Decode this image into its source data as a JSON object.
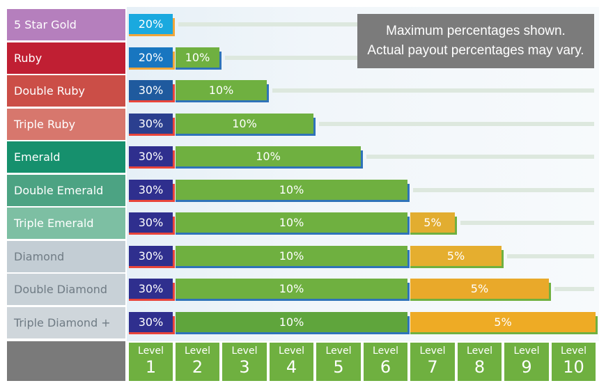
{
  "note": {
    "line1": "Maximum percentages shown.",
    "line2": "Actual payout percentages may vary."
  },
  "chart_data": {
    "type": "bar",
    "levels": [
      {
        "word": "Level",
        "num": "1"
      },
      {
        "word": "Level",
        "num": "2"
      },
      {
        "word": "Level",
        "num": "3"
      },
      {
        "word": "Level",
        "num": "4"
      },
      {
        "word": "Level",
        "num": "5"
      },
      {
        "word": "Level",
        "num": "6"
      },
      {
        "word": "Level",
        "num": "7"
      },
      {
        "word": "Level",
        "num": "8"
      },
      {
        "word": "Level",
        "num": "9"
      },
      {
        "word": "Level",
        "num": "10"
      }
    ],
    "ranks": [
      {
        "name": "5 Star Gold",
        "color": "#b57fbd",
        "segments": [
          {
            "label": "20%",
            "value": 20,
            "from_level": 1,
            "to_level": 1,
            "color": "#1aa9df",
            "accent": "#f0a63a"
          }
        ]
      },
      {
        "name": "Ruby",
        "color": "#c01f33",
        "segments": [
          {
            "label": "20%",
            "value": 20,
            "from_level": 1,
            "to_level": 1,
            "color": "#1876c0",
            "accent": "#f0a63a"
          },
          {
            "label": "10%",
            "value": 10,
            "from_level": 2,
            "to_level": 2,
            "color": "#6fb040",
            "accent": "#2f73b9"
          }
        ]
      },
      {
        "name": "Double Ruby",
        "color": "#cb4e47",
        "segments": [
          {
            "label": "30%",
            "value": 30,
            "from_level": 1,
            "to_level": 1,
            "color": "#1f5a9e",
            "accent": "#e8453b"
          },
          {
            "label": "10%",
            "value": 10,
            "from_level": 2,
            "to_level": 3,
            "color": "#6fb040",
            "accent": "#2f73b9"
          }
        ]
      },
      {
        "name": "Triple Ruby",
        "color": "#d7776d",
        "segments": [
          {
            "label": "30%",
            "value": 30,
            "from_level": 1,
            "to_level": 1,
            "color": "#2b3f8f",
            "accent": "#e8453b"
          },
          {
            "label": "10%",
            "value": 10,
            "from_level": 2,
            "to_level": 4,
            "color": "#6fb040",
            "accent": "#2f73b9"
          }
        ]
      },
      {
        "name": "Emerald",
        "color": "#16906d",
        "segments": [
          {
            "label": "30%",
            "value": 30,
            "from_level": 1,
            "to_level": 1,
            "color": "#2f2f8e",
            "accent": "#e8453b"
          },
          {
            "label": "10%",
            "value": 10,
            "from_level": 2,
            "to_level": 5,
            "color": "#6fb040",
            "accent": "#2f73b9"
          }
        ]
      },
      {
        "name": "Double Emerald",
        "color": "#4ca383",
        "segments": [
          {
            "label": "30%",
            "value": 30,
            "from_level": 1,
            "to_level": 1,
            "color": "#2f2f8e",
            "accent": "#e8453b"
          },
          {
            "label": "10%",
            "value": 10,
            "from_level": 2,
            "to_level": 6,
            "color": "#6fb040",
            "accent": "#2f73b9"
          }
        ]
      },
      {
        "name": "Triple Emerald",
        "color": "#7dbfa3",
        "segments": [
          {
            "label": "30%",
            "value": 30,
            "from_level": 1,
            "to_level": 1,
            "color": "#2f2f8e",
            "accent": "#e8453b"
          },
          {
            "label": "10%",
            "value": 10,
            "from_level": 2,
            "to_level": 6,
            "color": "#6fb040",
            "accent": "#2f73b9"
          },
          {
            "label": "5%",
            "value": 5,
            "from_level": 7,
            "to_level": 7,
            "color": "#e2ad30",
            "accent": "#6fb040"
          }
        ]
      },
      {
        "name": "Diamond",
        "color": "#c3cdd4",
        "text_color": "#6f7b84",
        "segments": [
          {
            "label": "30%",
            "value": 30,
            "from_level": 1,
            "to_level": 1,
            "color": "#2f2f8e",
            "accent": "#e8453b"
          },
          {
            "label": "10%",
            "value": 10,
            "from_level": 2,
            "to_level": 6,
            "color": "#6fb040",
            "accent": "#2f73b9"
          },
          {
            "label": "5%",
            "value": 5,
            "from_level": 7,
            "to_level": 8,
            "color": "#e5ae2f",
            "accent": "#6fb040"
          }
        ]
      },
      {
        "name": "Double Diamond",
        "color": "#c8d1d7",
        "text_color": "#6f7b84",
        "segments": [
          {
            "label": "30%",
            "value": 30,
            "from_level": 1,
            "to_level": 1,
            "color": "#2f2f8e",
            "accent": "#e8453b"
          },
          {
            "label": "10%",
            "value": 10,
            "from_level": 2,
            "to_level": 6,
            "color": "#6fb040",
            "accent": "#2f73b9"
          },
          {
            "label": "5%",
            "value": 5,
            "from_level": 7,
            "to_level": 9,
            "color": "#e9a92a",
            "accent": "#6fb040"
          }
        ]
      },
      {
        "name": "Triple Diamond +",
        "color": "#cfd6db",
        "text_color": "#6f7b84",
        "segments": [
          {
            "label": "30%",
            "value": 30,
            "from_level": 1,
            "to_level": 1,
            "color": "#2f2f8e",
            "accent": "#e8453b"
          },
          {
            "label": "10%",
            "value": 10,
            "from_level": 2,
            "to_level": 6,
            "color": "#5fa53c",
            "accent": "#2f73b9"
          },
          {
            "label": "5%",
            "value": 5,
            "from_level": 7,
            "to_level": 10,
            "color": "#eeab25",
            "accent": "#6fb040"
          }
        ]
      }
    ]
  }
}
